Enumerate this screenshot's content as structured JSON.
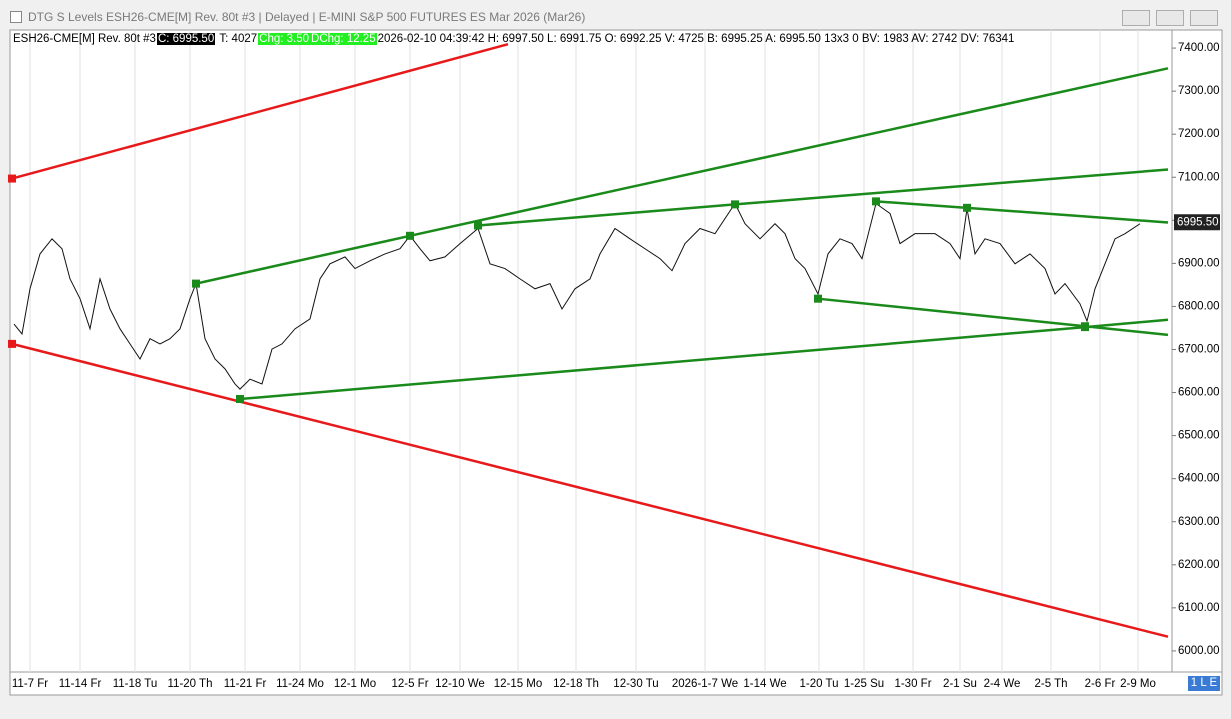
{
  "window": {
    "title": "DTG S Levels ESH26-CME[M]  Rev. 80t #3 | Delayed | E-MINI S&P 500 FUTURES ES Mar 2026 (Mar26)",
    "info": [
      "ESH26-CME[M]  Rev. 80t #3",
      "C: 6995.50",
      "T: 4027",
      "Chg: 3.50",
      "DChg: 12.25",
      "2026-02-10 04:39:42 H: 6997.50 L: 6991.75 O: 6992.25 V: 4725 B: 6995.25 A: 6995.50 13x3 0 BV: 1983 AV: 2742 DV: 76341"
    ],
    "corner": "1 L E"
  },
  "chart_data": {
    "type": "line",
    "xlim": [
      0,
      290
    ],
    "ylim": [
      5951,
      7442
    ],
    "xgrid": true,
    "xticks": [
      {
        "value": 4.5,
        "label": "11-7 Fr"
      },
      {
        "value": 17,
        "label": "11-14 Fr"
      },
      {
        "value": 30.75,
        "label": "11-18 Tu"
      },
      {
        "value": 44.5,
        "label": "11-20 Th"
      },
      {
        "value": 58.25,
        "label": "11-21 Fr"
      },
      {
        "value": 72,
        "label": "11-24 Mo"
      },
      {
        "value": 85.75,
        "label": "12-1 Mo"
      },
      {
        "value": 99.5,
        "label": "12-5 Fr"
      },
      {
        "value": 112,
        "label": "12-10 We"
      },
      {
        "value": 126.5,
        "label": "12-15 Mo"
      },
      {
        "value": 141,
        "label": "12-18 Th"
      },
      {
        "value": 156,
        "label": "12-30 Tu"
      },
      {
        "value": 173.25,
        "label": "2026-1-7 We"
      },
      {
        "value": 188.25,
        "label": "1-14 We"
      },
      {
        "value": 201.75,
        "label": "1-20 Tu"
      },
      {
        "value": 213,
        "label": "1-25 Su"
      },
      {
        "value": 225.25,
        "label": "1-30 Fr"
      },
      {
        "value": 237,
        "label": "2-1 Su"
      },
      {
        "value": 247.5,
        "label": "2-4 We"
      },
      {
        "value": 259.75,
        "label": "2-5 Th"
      },
      {
        "value": 272,
        "label": "2-6 Fr"
      },
      {
        "value": 281.5,
        "label": "2-9 Mo"
      }
    ],
    "yticks": [
      {
        "value": 6000,
        "label": "6000.00"
      },
      {
        "value": 6100,
        "label": "6100.00"
      },
      {
        "value": 6200,
        "label": "6200.00"
      },
      {
        "value": 6300,
        "label": "6300.00"
      },
      {
        "value": 6400,
        "label": "6400.00"
      },
      {
        "value": 6500,
        "label": "6500.00"
      },
      {
        "value": 6600,
        "label": "6600.00"
      },
      {
        "value": 6700,
        "label": "6700.00"
      },
      {
        "value": 6800,
        "label": "6800.00"
      },
      {
        "value": 6900,
        "label": "6900.00"
      },
      {
        "value": 7000,
        "label": "7000.00"
      },
      {
        "value": 7100,
        "label": "7100.00"
      },
      {
        "value": 7200,
        "label": "7200.00"
      },
      {
        "value": 7300,
        "label": "7300.00"
      },
      {
        "value": 7400,
        "label": "7400.00"
      }
    ],
    "last_price": 6995.5,
    "last_price_label": "6995.50",
    "series": [
      {
        "color": "#111111",
        "markers": false,
        "x": [
          0.5,
          2.5,
          4.5,
          7,
          10,
          12.5,
          14.5,
          17,
          19.5,
          22,
          24.5,
          27,
          29.5,
          32,
          34.5,
          37,
          39.5,
          42,
          44.5,
          46,
          48.25,
          50.75,
          53.25,
          55.75,
          57,
          59.5,
          62.5,
          65,
          67.5,
          70.75,
          74.5,
          77,
          79.5,
          83.25,
          85.75,
          89.5,
          93.25,
          97,
          99.5,
          102,
          104.5,
          108.25,
          112,
          116.5,
          119.5,
          123.25,
          127,
          130.75,
          134.5,
          137.5,
          140.75,
          144.5,
          147,
          150.75,
          154.5,
          158.25,
          162,
          165,
          168.25,
          172,
          175.75,
          180.75,
          183.25,
          187,
          190.75,
          193.25,
          195.75,
          198.25,
          201.5,
          204,
          207,
          210,
          212.5,
          216,
          219.5,
          222,
          225.75,
          230.75,
          234.5,
          237,
          238.75,
          240.75,
          243.25,
          247,
          250.75,
          254.5,
          258.25,
          260.75,
          263.25,
          267,
          268.75,
          270.75,
          273.25,
          275.75,
          278.25,
          282
        ],
        "values": [
          6759,
          6736,
          6841,
          6922,
          6957,
          6934,
          6864,
          6818,
          6748,
          6864,
          6794,
          6748,
          6713,
          6678,
          6725,
          6713,
          6725,
          6748,
          6818,
          6853,
          6725,
          6678,
          6655,
          6620,
          6608,
          6631,
          6620,
          6701,
          6713,
          6748,
          6771,
          6864,
          6899,
          6915,
          6888,
          6906,
          6922,
          6934,
          6964,
          6934,
          6906,
          6915,
          6946,
          6981,
          6899,
          6888,
          6864,
          6841,
          6853,
          6794,
          6841,
          6864,
          6922,
          6981,
          6957,
          6934,
          6911,
          6883,
          6946,
          6981,
          6969,
          7039,
          6992,
          6957,
          6992,
          6969,
          6911,
          6888,
          6829,
          6922,
          6957,
          6946,
          6911,
          7039,
          7016,
          6946,
          6969,
          6969,
          6946,
          6911,
          7027,
          6922,
          6957,
          6946,
          6899,
          6922,
          6888,
          6829,
          6853,
          6806,
          6766,
          6841,
          6899,
          6957,
          6969,
          6992
        ]
      },
      {
        "color": "#e8191a",
        "markers": true,
        "x": [
          0,
          124
        ],
        "values": [
          7097,
          7409
        ]
      },
      {
        "color": "#e8191a",
        "markers": true,
        "x": [
          0,
          289
        ],
        "values": [
          6713,
          6033
        ]
      },
      {
        "color": "#1a8a1a",
        "markers": true,
        "x": [
          46,
          99.5,
          289
        ],
        "values": [
          6853,
          6964,
          7353
        ]
      },
      {
        "color": "#1a8a1a",
        "markers": true,
        "x": [
          116.5,
          180.75,
          289
        ],
        "values": [
          6988,
          7037,
          7118
        ]
      },
      {
        "color": "#1a8a1a",
        "markers": true,
        "x": [
          57,
          268.25,
          289
        ],
        "values": [
          6585,
          6752,
          6769
        ]
      },
      {
        "color": "#1a8a1a",
        "markers": true,
        "x": [
          201.5,
          268.25,
          289
        ],
        "values": [
          6818,
          6754,
          6734
        ]
      },
      {
        "color": "#1a8a1a",
        "markers": true,
        "x": [
          216,
          238.75,
          289
        ],
        "values": [
          7044,
          7029,
          6995
        ]
      }
    ]
  }
}
